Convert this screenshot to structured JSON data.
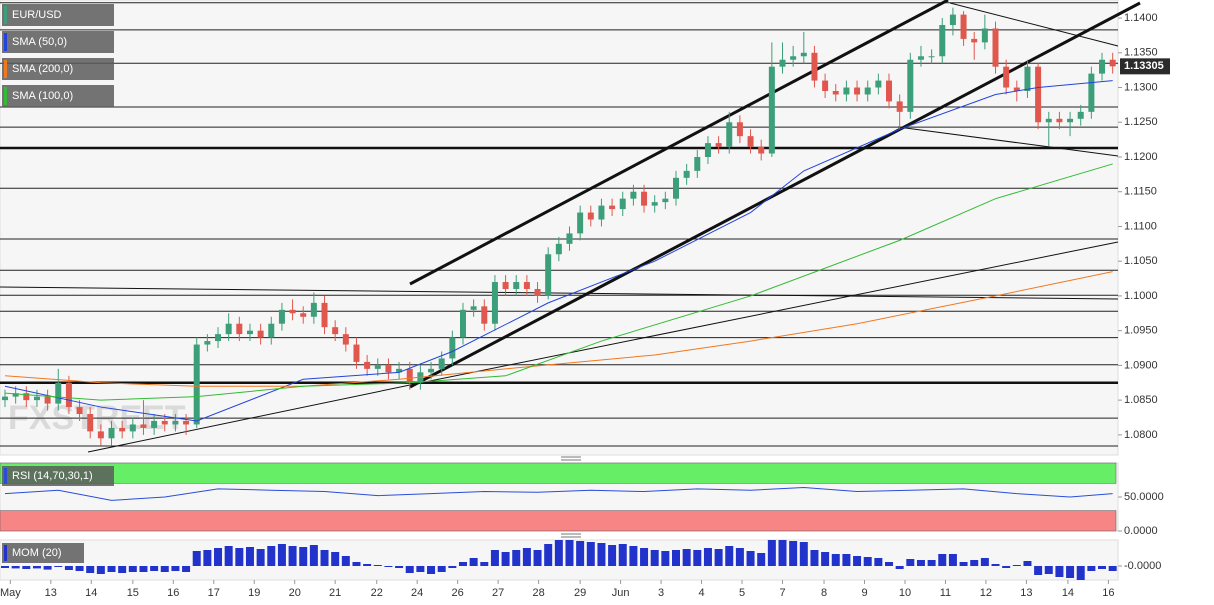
{
  "chart_data": {
    "type": "candlestick",
    "symbol": "EUR/USD",
    "watermark": "FXSTREET",
    "colors": {
      "up": "#3d9e7a",
      "down": "#e0574e"
    },
    "xlim": [
      -0.47,
      104.5
    ],
    "xticks": [
      {
        "value": 0.5,
        "label": "May"
      },
      {
        "value": 4.3,
        "label": "13"
      },
      {
        "value": 8.1,
        "label": "14"
      },
      {
        "value": 12.0,
        "label": "15"
      },
      {
        "value": 15.8,
        "label": "16"
      },
      {
        "value": 19.6,
        "label": "17"
      },
      {
        "value": 23.4,
        "label": "19"
      },
      {
        "value": 27.2,
        "label": "20"
      },
      {
        "value": 31.0,
        "label": "21"
      },
      {
        "value": 34.9,
        "label": "22"
      },
      {
        "value": 38.7,
        "label": "24"
      },
      {
        "value": 42.5,
        "label": "26"
      },
      {
        "value": 46.3,
        "label": "27"
      },
      {
        "value": 50.1,
        "label": "28"
      },
      {
        "value": 54.0,
        "label": "29"
      },
      {
        "value": 57.8,
        "label": "Jun"
      },
      {
        "value": 61.6,
        "label": "3"
      },
      {
        "value": 65.4,
        "label": "4"
      },
      {
        "value": 69.2,
        "label": "5"
      },
      {
        "value": 73.0,
        "label": "7"
      },
      {
        "value": 76.9,
        "label": "8"
      },
      {
        "value": 80.7,
        "label": "9"
      },
      {
        "value": 84.5,
        "label": "10"
      },
      {
        "value": 88.3,
        "label": "11"
      },
      {
        "value": 92.1,
        "label": "12"
      },
      {
        "value": 95.9,
        "label": "13"
      },
      {
        "value": 99.8,
        "label": "14"
      },
      {
        "value": 103.6,
        "label": "16"
      }
    ],
    "ylim": [
      1.0771,
      1.1426
    ],
    "yticks": [
      {
        "value": 1.14,
        "label": "1.1400"
      },
      {
        "value": 1.135,
        "label": "1.1350"
      },
      {
        "value": 1.13,
        "label": "1.1300"
      },
      {
        "value": 1.125,
        "label": "1.1250"
      },
      {
        "value": 1.12,
        "label": "1.1200"
      },
      {
        "value": 1.115,
        "label": "1.1150"
      },
      {
        "value": 1.11,
        "label": "1.1100"
      },
      {
        "value": 1.105,
        "label": "1.1050"
      },
      {
        "value": 1.1,
        "label": "1.1000"
      },
      {
        "value": 1.095,
        "label": "1.0950"
      },
      {
        "value": 1.09,
        "label": "1.0900"
      },
      {
        "value": 1.085,
        "label": "1.0850"
      },
      {
        "value": 1.08,
        "label": "1.0800"
      }
    ],
    "open": [
      1.085,
      1.0855,
      1.086,
      1.085,
      1.0855,
      1.0845,
      1.0875,
      1.084,
      1.083,
      1.0805,
      1.0795,
      1.081,
      1.0805,
      1.0815,
      1.081,
      1.082,
      1.0815,
      1.082,
      1.0815,
      1.093,
      1.0935,
      1.0945,
      1.096,
      1.0945,
      1.095,
      1.094,
      1.096,
      1.098,
      1.0975,
      1.097,
      1.099,
      1.0955,
      1.0945,
      1.093,
      1.0905,
      1.0895,
      1.09,
      1.089,
      1.0895,
      1.0875,
      1.089,
      1.0895,
      1.091,
      1.094,
      1.098,
      1.0985,
      1.096,
      1.102,
      1.101,
      1.102,
      1.101,
      1.1,
      1.106,
      1.1075,
      1.109,
      1.112,
      1.111,
      1.113,
      1.1125,
      1.114,
      1.115,
      1.113,
      1.1135,
      1.114,
      1.117,
      1.118,
      1.12,
      1.122,
      1.1215,
      1.125,
      1.123,
      1.1215,
      1.1205,
      1.133,
      1.134,
      1.1345,
      1.135,
      1.131,
      1.1295,
      1.129,
      1.13,
      1.129,
      1.13,
      1.131,
      1.128,
      1.1265,
      1.134,
      1.1345,
      1.1345,
      1.139,
      1.1405,
      1.137,
      1.1365,
      1.1385,
      1.133,
      1.13,
      1.1295,
      1.133,
      1.125,
      1.1255,
      1.125,
      1.1255,
      1.1265,
      1.132,
      1.134
    ],
    "high": [
      1.0865,
      1.087,
      1.087,
      1.0865,
      1.0865,
      1.0895,
      1.0885,
      1.085,
      1.084,
      1.0815,
      1.082,
      1.082,
      1.0825,
      1.085,
      1.083,
      1.083,
      1.083,
      1.083,
      1.094,
      1.0945,
      1.0955,
      1.0975,
      1.097,
      1.096,
      1.096,
      1.097,
      1.099,
      1.0995,
      1.0985,
      1.1005,
      1.1,
      1.0965,
      1.0955,
      1.094,
      1.0915,
      1.091,
      1.091,
      1.0905,
      1.0905,
      1.09,
      1.0905,
      1.092,
      1.095,
      1.099,
      1.0995,
      1.0995,
      1.103,
      1.103,
      1.103,
      1.103,
      1.102,
      1.107,
      1.1085,
      1.11,
      1.113,
      1.113,
      1.114,
      1.114,
      1.115,
      1.116,
      1.116,
      1.1145,
      1.115,
      1.118,
      1.119,
      1.121,
      1.123,
      1.123,
      1.1265,
      1.126,
      1.124,
      1.1225,
      1.1365,
      1.1365,
      1.136,
      1.138,
      1.136,
      1.132,
      1.1305,
      1.131,
      1.131,
      1.131,
      1.132,
      1.132,
      1.129,
      1.135,
      1.136,
      1.1355,
      1.14,
      1.1415,
      1.141,
      1.138,
      1.1405,
      1.1395,
      1.134,
      1.131,
      1.134,
      1.1335,
      1.1265,
      1.1265,
      1.1265,
      1.1275,
      1.133,
      1.135,
      1.135
    ],
    "low": [
      1.084,
      1.0845,
      1.084,
      1.084,
      1.0835,
      1.0835,
      1.083,
      1.082,
      1.0795,
      1.0785,
      1.0785,
      1.0795,
      1.0795,
      1.08,
      1.08,
      1.0805,
      1.0805,
      1.08,
      1.081,
      1.092,
      1.0925,
      1.0935,
      1.0935,
      1.0935,
      1.093,
      1.093,
      1.095,
      1.0965,
      1.096,
      1.096,
      1.0945,
      1.0935,
      1.092,
      1.0895,
      1.0885,
      1.0885,
      1.088,
      1.088,
      1.0865,
      1.0865,
      1.088,
      1.0885,
      1.09,
      1.093,
      1.097,
      1.095,
      1.095,
      1.1,
      1.1,
      1.1,
      1.099,
      1.0995,
      1.105,
      1.1065,
      1.108,
      1.11,
      1.11,
      1.1115,
      1.1115,
      1.113,
      1.112,
      1.112,
      1.1125,
      1.113,
      1.116,
      1.117,
      1.119,
      1.1205,
      1.1205,
      1.122,
      1.1205,
      1.1195,
      1.12,
      1.132,
      1.133,
      1.1335,
      1.13,
      1.1285,
      1.128,
      1.128,
      1.128,
      1.128,
      1.129,
      1.127,
      1.124,
      1.1255,
      1.133,
      1.1335,
      1.1335,
      1.1375,
      1.136,
      1.134,
      1.1355,
      1.132,
      1.129,
      1.128,
      1.1285,
      1.124,
      1.1215,
      1.124,
      1.123,
      1.1245,
      1.1255,
      1.131,
      1.132
    ],
    "close": [
      1.0855,
      1.086,
      1.085,
      1.0855,
      1.0845,
      1.0875,
      1.084,
      1.083,
      1.0805,
      1.0795,
      1.081,
      1.0805,
      1.0815,
      1.081,
      1.082,
      1.0815,
      1.082,
      1.0815,
      1.093,
      1.0935,
      1.0945,
      1.096,
      1.0945,
      1.095,
      1.094,
      1.096,
      1.098,
      1.0975,
      1.097,
      1.099,
      1.0955,
      1.0945,
      1.093,
      1.0905,
      1.0895,
      1.09,
      1.089,
      1.0895,
      1.0875,
      1.089,
      1.0895,
      1.091,
      1.094,
      1.098,
      1.0985,
      1.096,
      1.102,
      1.101,
      1.102,
      1.101,
      1.1,
      1.106,
      1.1075,
      1.109,
      1.112,
      1.111,
      1.113,
      1.1125,
      1.114,
      1.115,
      1.113,
      1.1135,
      1.114,
      1.117,
      1.118,
      1.12,
      1.122,
      1.1215,
      1.125,
      1.123,
      1.1215,
      1.1205,
      1.133,
      1.134,
      1.1345,
      1.135,
      1.131,
      1.1295,
      1.129,
      1.13,
      1.129,
      1.13,
      1.131,
      1.128,
      1.1265,
      1.134,
      1.1345,
      1.1345,
      1.139,
      1.1405,
      1.137,
      1.1365,
      1.1385,
      1.133,
      1.13,
      1.1295,
      1.133,
      1.125,
      1.1255,
      1.125,
      1.1255,
      1.1265,
      1.132,
      1.134,
      1.13305
    ],
    "series": [
      {
        "name": "SMA (50,0)",
        "color": "#2244dd",
        "x": [
          0,
          9,
          18,
          28,
          37,
          42,
          51,
          61,
          70,
          75,
          84,
          93,
          97,
          104
        ],
        "values": [
          1.087,
          1.084,
          1.082,
          1.088,
          1.089,
          1.092,
          1.099,
          1.105,
          1.112,
          1.118,
          1.124,
          1.129,
          1.13,
          1.131
        ]
      },
      {
        "name": "SMA (200,0)",
        "color": "#f07820",
        "x": [
          0,
          9,
          18,
          28,
          37,
          47,
          61,
          70,
          80,
          93,
          104
        ],
        "values": [
          1.0885,
          1.0875,
          1.087,
          1.087,
          1.088,
          1.0895,
          1.0915,
          1.0935,
          1.096,
          1.1,
          1.1035
        ]
      },
      {
        "name": "SMA (100,0)",
        "color": "#33bb33",
        "x": [
          0,
          9,
          18,
          28,
          38,
          47,
          56,
          70,
          84,
          93,
          104
        ],
        "values": [
          1.086,
          1.085,
          1.0855,
          1.087,
          1.0875,
          1.0885,
          1.0935,
          1.1,
          1.108,
          1.114,
          1.119
        ]
      }
    ],
    "levels": [
      1.1422,
      1.1383,
      1.1335,
      1.1272,
      1.1243,
      1.1155,
      1.1082,
      1.1037,
      1.1001,
      1.0978,
      1.094,
      1.0901,
      1.0824,
      1.0784
    ],
    "key_levels": [
      1.1213,
      1.0875
    ],
    "indicators": [
      {
        "type": "line",
        "name": "RSI (14,70,30,1)",
        "color": "#2a4dd8",
        "x": [
          0,
          5,
          10,
          15,
          20,
          25,
          30,
          35,
          40,
          45,
          50,
          55,
          60,
          65,
          70,
          75,
          80,
          85,
          90,
          95,
          100,
          104
        ],
        "values": [
          55,
          60,
          45,
          50,
          62,
          60,
          58,
          52,
          55,
          58,
          57,
          60,
          58,
          62,
          60,
          64,
          58,
          60,
          62,
          55,
          50,
          55
        ],
        "ylim": [
          0,
          100
        ],
        "yticks": [
          {
            "value": 50,
            "label": "50.0000"
          },
          {
            "value": 0,
            "label": "0.0000"
          }
        ],
        "bands": [
          {
            "from": 70,
            "to": 100,
            "color": "#66ee66"
          },
          {
            "from": 0,
            "to": 30,
            "color": "#f78585"
          }
        ]
      },
      {
        "type": "histogram",
        "name": "MOM (20)",
        "color": "#2233cc",
        "values": [
          -0.001,
          -0.0012,
          -0.0015,
          -0.0012,
          -0.0018,
          -0.0005,
          -0.002,
          -0.0025,
          -0.0035,
          -0.004,
          -0.003,
          -0.0035,
          -0.003,
          -0.003,
          -0.0025,
          -0.003,
          -0.0025,
          -0.003,
          0.0075,
          0.008,
          0.009,
          0.01,
          0.009,
          0.0095,
          0.0085,
          0.01,
          0.011,
          0.01,
          0.0095,
          0.0105,
          0.008,
          0.007,
          0.005,
          0.002,
          0.001,
          0.0005,
          -0.0005,
          -0.001,
          -0.0035,
          -0.003,
          -0.004,
          -0.003,
          -0.001,
          0.002,
          0.004,
          0.002,
          0.008,
          0.007,
          0.008,
          0.009,
          0.008,
          0.011,
          0.013,
          0.013,
          0.0125,
          0.012,
          0.0115,
          0.0105,
          0.011,
          0.01,
          0.009,
          0.008,
          0.0075,
          0.008,
          0.0085,
          0.008,
          0.009,
          0.0085,
          0.01,
          0.009,
          0.0075,
          0.0065,
          0.013,
          0.013,
          0.0125,
          0.012,
          0.008,
          0.007,
          0.006,
          0.006,
          0.005,
          0.0045,
          0.004,
          0.002,
          -0.0015,
          0.0035,
          0.003,
          0.003,
          0.006,
          0.006,
          0.002,
          0.003,
          0.004,
          0.001,
          -0.001,
          0.0005,
          0.0025,
          -0.0045,
          -0.004,
          -0.0055,
          -0.006,
          -0.007,
          -0.0025,
          -0.0015,
          -0.0025
        ],
        "ylim": [
          -0.007,
          0.013
        ],
        "yticks": [
          {
            "value": 0,
            "label": "-0.0000"
          }
        ]
      }
    ]
  }
}
